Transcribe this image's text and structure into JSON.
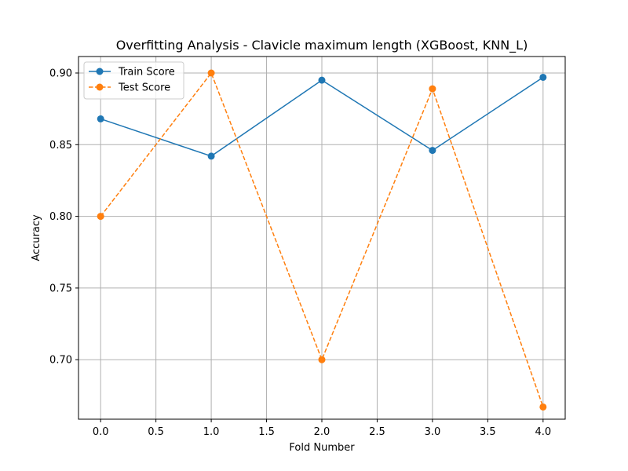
{
  "chart_data": {
    "type": "line",
    "title": "Overfitting Analysis - Clavicle maximum length (XGBoost, KNN_L)",
    "xlabel": "Fold Number",
    "ylabel": "Accuracy",
    "x": [
      0,
      1,
      2,
      3,
      4
    ],
    "xlim": [
      -0.2,
      4.2
    ],
    "ylim": [
      0.6585,
      0.9115
    ],
    "xticks": [
      0.0,
      0.5,
      1.0,
      1.5,
      2.0,
      2.5,
      3.0,
      3.5,
      4.0
    ],
    "xtick_labels": [
      "0.0",
      "0.5",
      "1.0",
      "1.5",
      "2.0",
      "2.5",
      "3.0",
      "3.5",
      "4.0"
    ],
    "yticks": [
      0.7,
      0.75,
      0.8,
      0.85,
      0.9
    ],
    "ytick_labels": [
      "0.70",
      "0.75",
      "0.80",
      "0.85",
      "0.90"
    ],
    "grid": true,
    "legend_position": "top-left",
    "series": [
      {
        "name": "Train Score",
        "values": [
          0.868,
          0.842,
          0.895,
          0.846,
          0.897
        ],
        "color": "#1f77b4",
        "line_style": "solid",
        "marker": "circle"
      },
      {
        "name": "Test Score",
        "values": [
          0.8,
          0.9,
          0.7,
          0.889,
          0.667
        ],
        "color": "#ff7f0e",
        "line_style": "dashed",
        "marker": "circle"
      }
    ]
  }
}
